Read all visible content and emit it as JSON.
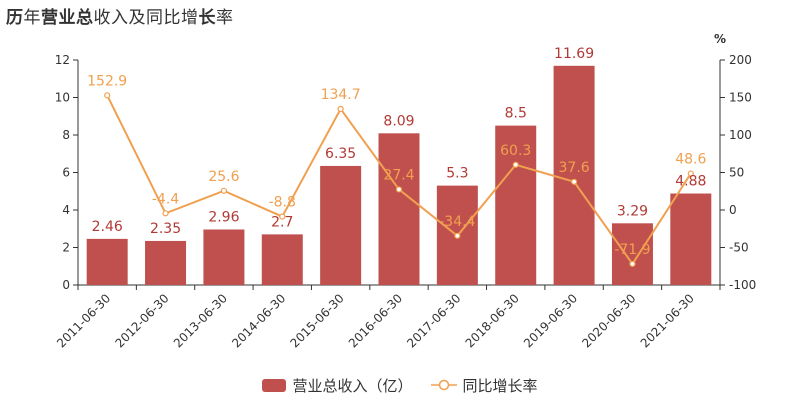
{
  "title_parts": [
    {
      "text": "历",
      "bold": true
    },
    {
      "text": "年",
      "bold": false
    },
    {
      "text": "营业总",
      "bold": true
    },
    {
      "text": "收入及同比增",
      "bold": false
    },
    {
      "text": "长",
      "bold": true
    },
    {
      "text": "率",
      "bold": false
    }
  ],
  "colors": {
    "bar": "#c0504d",
    "line": "#f0a050",
    "axis": "#333333",
    "barLabel": "#b03a36",
    "lineLabel": "#f0a050"
  },
  "chart_data": {
    "type": "bar",
    "title": "历年营业总收入及同比增长率",
    "categories": [
      "2011-06-30",
      "2012-06-30",
      "2013-06-30",
      "2014-06-30",
      "2015-06-30",
      "2016-06-30",
      "2017-06-30",
      "2018-06-30",
      "2019-06-30",
      "2020-06-30",
      "2021-06-30"
    ],
    "series": [
      {
        "name": "营业总收入（亿）",
        "type": "bar",
        "axis": "left",
        "values": [
          2.46,
          2.35,
          2.96,
          2.7,
          6.35,
          8.09,
          5.3,
          8.5,
          11.69,
          3.29,
          4.88
        ],
        "labels": [
          "2.46",
          "2.35",
          "2.96",
          "2.7",
          "6.35",
          "8.09",
          "5.3",
          "8.5",
          "11.69",
          "3.29",
          "4.88"
        ]
      },
      {
        "name": "同比增长率",
        "type": "line",
        "axis": "right",
        "values": [
          152.9,
          -4.4,
          25.6,
          -8.8,
          134.7,
          27.4,
          -34.4,
          60.3,
          37.6,
          -71.9,
          48.6
        ],
        "labels": [
          "152.9",
          "-4.4",
          "25.6",
          "-8.8",
          "134.7",
          "27.4",
          "-34.4",
          "60.3",
          "37.6",
          "-71.9",
          "48.6"
        ]
      }
    ],
    "y_left": {
      "min": 0,
      "max": 12,
      "ticks": [
        "0",
        "2",
        "4",
        "6",
        "8",
        "10",
        "12"
      ]
    },
    "y_right": {
      "min": -100,
      "max": 200,
      "ticks": [
        "-100",
        "-50",
        "0",
        "50",
        "100",
        "150",
        "200"
      ],
      "unit": "%"
    },
    "grid": false,
    "legend_position": "bottom-center"
  }
}
